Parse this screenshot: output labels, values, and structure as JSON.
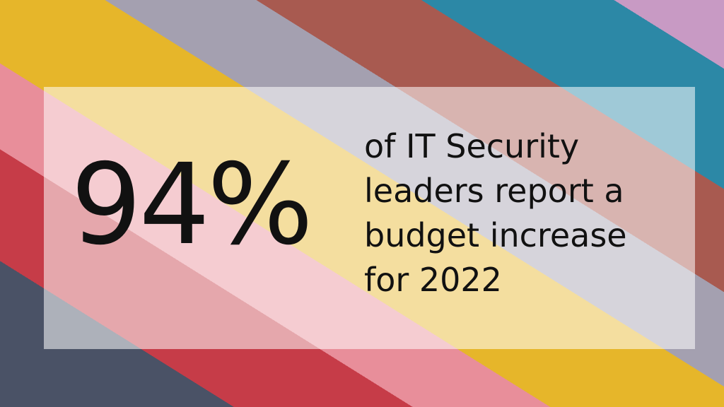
{
  "stat": "94%",
  "description": [
    "of IT Security",
    "leaders report a",
    "budget increase",
    "for 2022"
  ]
}
